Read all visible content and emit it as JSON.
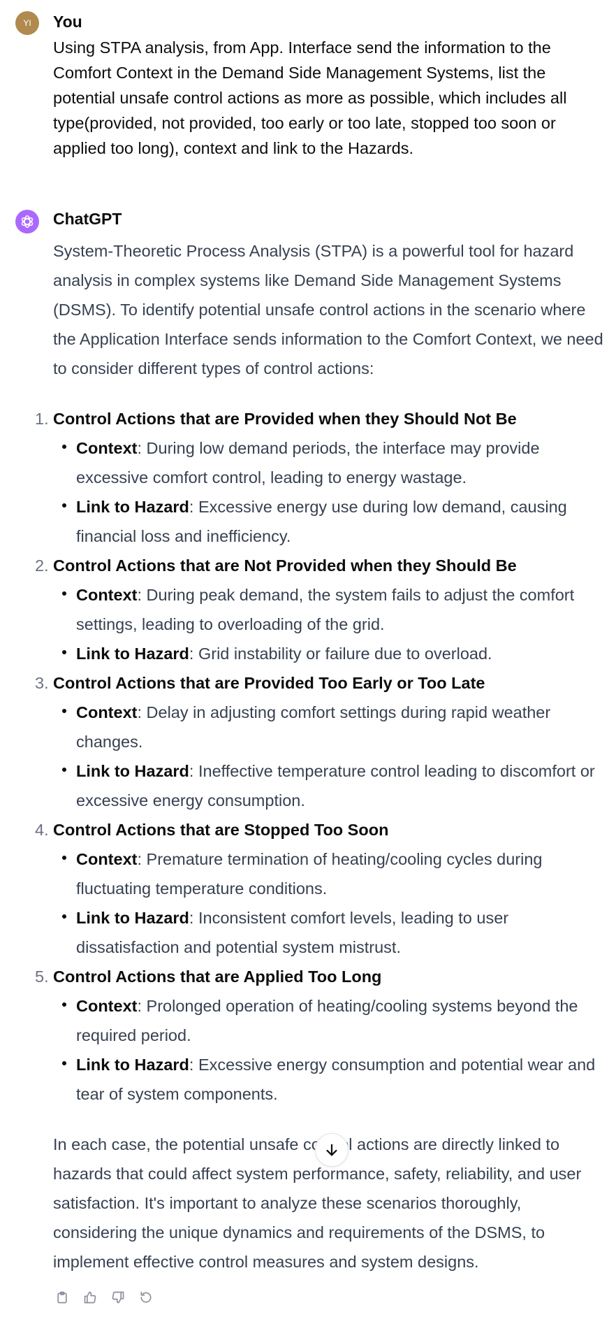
{
  "user": {
    "initials": "YI",
    "name": "You",
    "message": "Using STPA analysis, from App. Interface send the information to the Comfort Context in the Demand Side Management Systems, list the potential unsafe control actions as more as possible, which includes all type(provided, not provided, too early or too late, stopped too soon or applied too long), context and link to the Hazards."
  },
  "assistant": {
    "name": "ChatGPT",
    "intro": "System-Theoretic Process Analysis (STPA) is a powerful tool for hazard analysis in complex systems like Demand Side Management Systems (DSMS). To identify potential unsafe control actions in the scenario where the Application Interface sends information to the Comfort Context, we need to consider different types of control actions:",
    "context_label": "Context",
    "hazard_label": "Link to Hazard",
    "items": [
      {
        "num": "1.",
        "title": "Control Actions that are Provided when they Should Not Be",
        "context": ": During low demand periods, the interface may provide excessive comfort control, leading to energy wastage.",
        "hazard": ": Excessive energy use during low demand, causing financial loss and inefficiency."
      },
      {
        "num": "2.",
        "title": "Control Actions that are Not Provided when they Should Be",
        "context": ": During peak demand, the system fails to adjust the comfort settings, leading to overloading of the grid.",
        "hazard": ": Grid instability or failure due to overload."
      },
      {
        "num": "3.",
        "title": "Control Actions that are Provided Too Early or Too Late",
        "context": ": Delay in adjusting comfort settings during rapid weather changes.",
        "hazard": ": Ineffective temperature control leading to discomfort or excessive energy consumption."
      },
      {
        "num": "4.",
        "title": "Control Actions that are Stopped Too Soon",
        "context": ": Premature termination of heating/cooling cycles during fluctuating temperature conditions.",
        "hazard": ": Inconsistent comfort levels, leading to user dissatisfaction and potential system mistrust."
      },
      {
        "num": "5.",
        "title": "Control Actions that are Applied Too Long",
        "context": ": Prolonged operation of heating/cooling systems beyond the required period.",
        "hazard": ": Excessive energy consumption and potential wear and tear of system components."
      }
    ],
    "outro": "In each case, the potential unsafe control actions are directly linked to hazards that could affect system performance, safety, reliability, and user satisfaction. It's important to analyze these scenarios thoroughly, considering the unique dynamics and requirements of the DSMS, to implement effective control measures and system designs."
  },
  "icons": {
    "scroll": "arrow-down-icon",
    "copy": "clipboard-icon",
    "like": "thumbs-up-icon",
    "dislike": "thumbs-down-icon",
    "regenerate": "regenerate-icon"
  },
  "colors": {
    "user_avatar": "#b08a4e",
    "assistant_avatar": "#ab68ff",
    "body_text": "#374151"
  }
}
